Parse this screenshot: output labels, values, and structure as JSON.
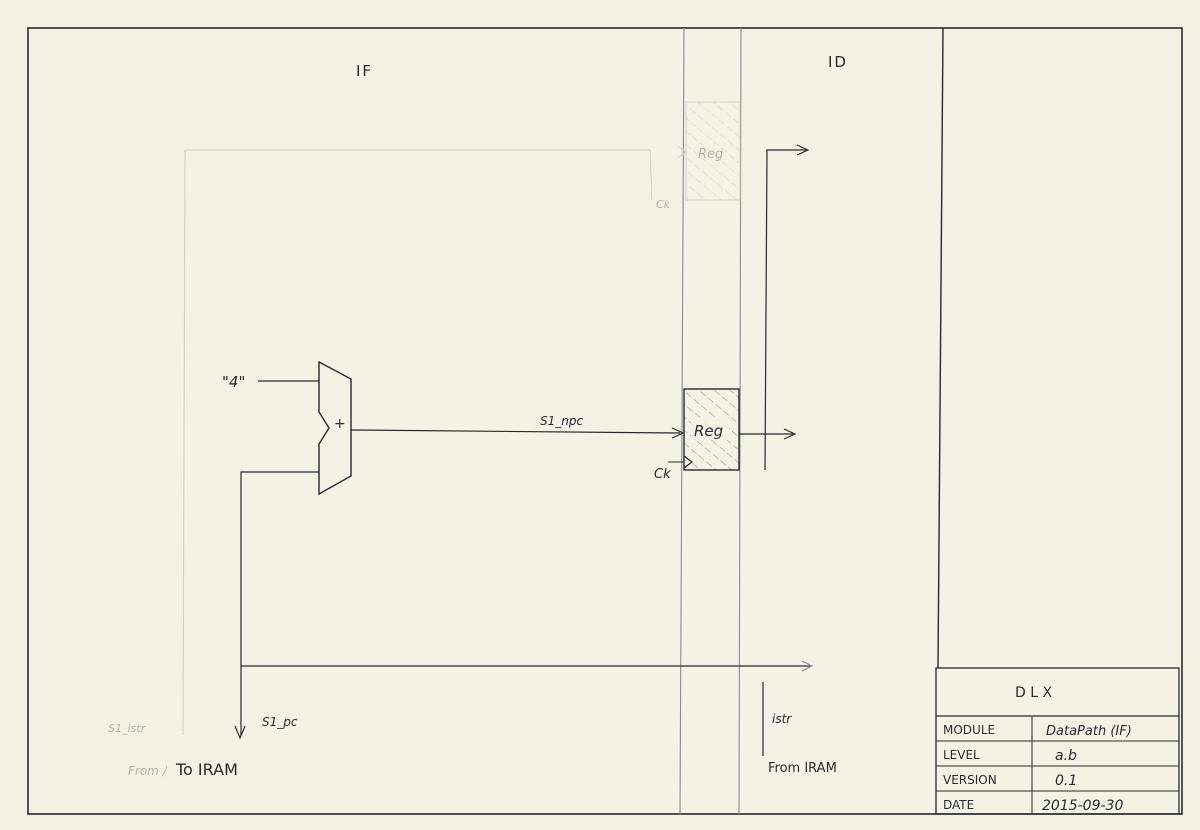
{
  "stages": {
    "left": "IF",
    "right": "ID"
  },
  "adder": {
    "constant_input": "\"4\"",
    "symbol": "+"
  },
  "register": {
    "label": "Reg",
    "clock_label": "Ck"
  },
  "ghost_register": {
    "label": "Reg",
    "clock_label": "Ck"
  },
  "signals": {
    "npc": "S1_npc",
    "pc": "S1_pc",
    "istr": "istr",
    "ghost_istr": "S1_istr"
  },
  "io": {
    "to_iram": "To IRAM",
    "ghost_from": "From /",
    "from_iram": "From IRAM"
  },
  "title_block": {
    "title": "D L X",
    "rows": [
      {
        "key": "MODULE",
        "value": "DataPath (IF)"
      },
      {
        "key": "LEVEL",
        "value": "a.b"
      },
      {
        "key": "VERSION",
        "value": "0.1"
      },
      {
        "key": "DATE",
        "value": "2015-09-30"
      }
    ]
  },
  "colors": {
    "paper": "#f6f1e5",
    "ink": "#2a2a30",
    "faint": "#c9c4b8",
    "hatch": "#8a8a90"
  }
}
